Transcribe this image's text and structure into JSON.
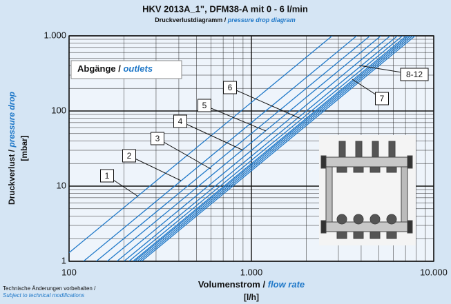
{
  "chart_data": {
    "type": "line",
    "title": "HKV 2013A_1\", DFM38-A mit 0 - 6 l/min",
    "subtitle": "Druckverlustdiagramm / ",
    "subtitle_en": "pressure drop diagram",
    "x_label": "Volumenstrom / ",
    "x_label_en": "flow rate",
    "x_unit": "[l/h]",
    "y_label": "Druckverlust / ",
    "y_label_en": "pressure drop",
    "y_unit": "[mbar]",
    "legend_title": "Abgänge / ",
    "legend_title_en": "outlets",
    "footnote": "Technische Änderungen vorbehalten /",
    "footnote_en": "Subject to technical modifications",
    "log_x": true,
    "log_y": true,
    "grid": true,
    "minor_grid": true,
    "xlim": [
      100,
      10000
    ],
    "xticks": [
      100,
      {
        "value": 1000,
        "label": "1.000"
      },
      {
        "value": 10000,
        "label": "10.000"
      }
    ],
    "ylim": [
      1,
      1000
    ],
    "yticks": [
      1,
      10,
      100,
      {
        "value": 1000,
        "label": "1.000"
      }
    ],
    "series": [
      {
        "name": "1",
        "color": "#1f78c8",
        "x": [
          100,
          2773
        ],
        "values": [
          1.3,
          1000
        ]
      },
      {
        "name": "2",
        "color": "#1f78c8",
        "x": [
          120,
          3780
        ],
        "values": [
          1,
          1000
        ]
      },
      {
        "name": "3",
        "color": "#1f78c8",
        "x": [
          141,
          4472
        ],
        "values": [
          1,
          1000
        ]
      },
      {
        "name": "4",
        "color": "#1f78c8",
        "x": [
          162,
          5130
        ],
        "values": [
          1,
          1000
        ]
      },
      {
        "name": "5",
        "color": "#1f78c8",
        "x": [
          183,
          5774
        ],
        "values": [
          1,
          1000
        ]
      },
      {
        "name": "6",
        "color": "#1f78c8",
        "x": [
          200,
          6325
        ],
        "values": [
          1,
          1000
        ]
      },
      {
        "name": "7",
        "color": "#1f78c8",
        "x": [
          213,
          6742
        ],
        "values": [
          1,
          1000
        ]
      },
      {
        "name": "8-12",
        "color": "#1f78c8",
        "x": [
          224,
          7071
        ],
        "values": [
          1,
          1000
        ]
      },
      {
        "color": "#1f78c8",
        "x": [
          229,
          7255
        ],
        "values": [
          1,
          1000
        ]
      },
      {
        "color": "#1f78c8",
        "x": [
          236,
          7454
        ],
        "values": [
          1,
          1000
        ]
      },
      {
        "color": "#1f78c8",
        "x": [
          243,
          7670
        ],
        "values": [
          1,
          1000
        ]
      },
      {
        "color": "#1f78c8",
        "x": [
          250,
          7906
        ],
        "values": [
          1,
          1000
        ]
      }
    ]
  }
}
